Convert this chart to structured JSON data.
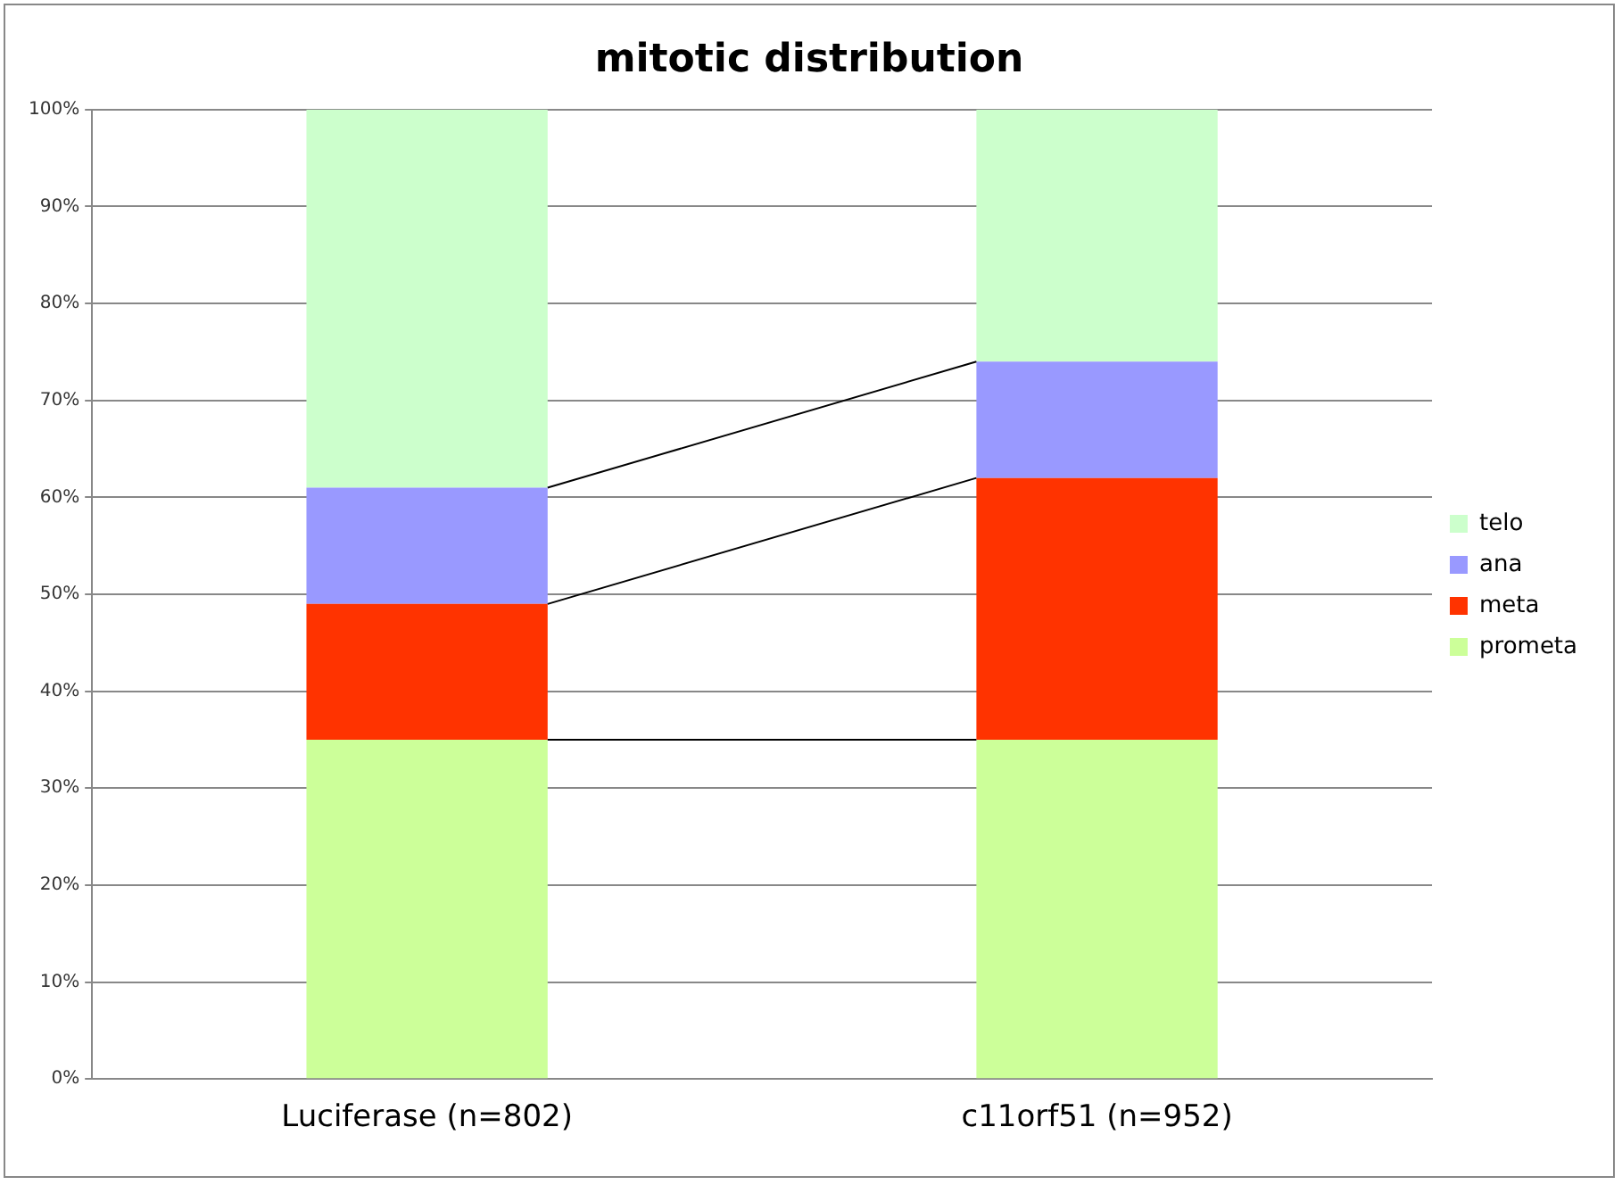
{
  "chart_data": {
    "type": "bar",
    "title": "mitotic distribution",
    "categories": [
      "Luciferase (n=802)",
      "c11orf51 (n=952)"
    ],
    "stacked": true,
    "series": [
      {
        "name": "prometa",
        "color": "#ccff99",
        "values": [
          35,
          35
        ]
      },
      {
        "name": "meta",
        "color": "#ff3300",
        "values": [
          14,
          27
        ]
      },
      {
        "name": "ana",
        "color": "#9999ff",
        "values": [
          12,
          12
        ]
      },
      {
        "name": "telo",
        "color": "#ccffcc",
        "values": [
          39,
          26
        ]
      }
    ],
    "ylim": [
      0,
      100
    ],
    "yticks": [
      {
        "value": 0,
        "label": "0%"
      },
      {
        "value": 10,
        "label": "10%"
      },
      {
        "value": 20,
        "label": "20%"
      },
      {
        "value": 30,
        "label": "30%"
      },
      {
        "value": 40,
        "label": "40%"
      },
      {
        "value": 50,
        "label": "50%"
      },
      {
        "value": 60,
        "label": "60%"
      },
      {
        "value": 70,
        "label": "70%"
      },
      {
        "value": 80,
        "label": "80%"
      },
      {
        "value": 90,
        "label": "90%"
      },
      {
        "value": 100,
        "label": "100%"
      }
    ],
    "grid": "y",
    "legend": "right"
  }
}
